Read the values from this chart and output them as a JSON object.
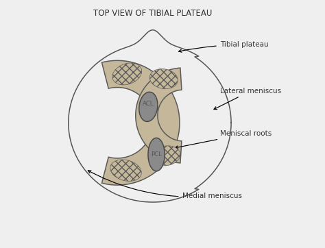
{
  "title": "TOP VIEW OF TIBIAL PLATEAU",
  "title_fontsize": 8.5,
  "bg_color": "#efefef",
  "meniscus_fill": "#c5b89a",
  "meniscus_edge": "#5a5a5a",
  "ligament_fill": "#8a8a8a",
  "ligament_edge": "#4a4a4a",
  "plateau_edge": "#555555",
  "label_fontsize": 7.5,
  "label_color": "#333333",
  "acl_text_color": "#555555",
  "pcl_text_color": "#555555",
  "labels": {
    "tibial_plateau": "Tibial plateau",
    "lateral_meniscus": "Lateral meniscus",
    "meniscal_roots": "Meniscal roots",
    "medial_meniscus": "Medial meniscus",
    "acl": "ACL",
    "pcl": "PCL"
  }
}
